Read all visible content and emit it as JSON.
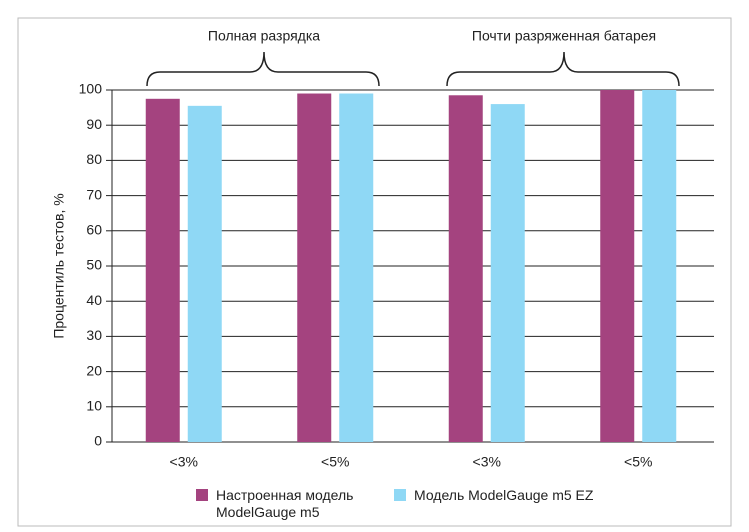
{
  "chart_data": {
    "type": "bar",
    "ylabel": "Процентиль тестов, %",
    "group_labels": [
      "Полная разрядка",
      "Почти разряженная батарея"
    ],
    "categories": [
      "<3%",
      "<5%",
      "<3%",
      "<5%"
    ],
    "series": [
      {
        "name": "Настроенная модель ModelGauge m5",
        "color": "#a4437f",
        "values": [
          97.5,
          99,
          98.5,
          100
        ]
      },
      {
        "name": "Модель ModelGauge m5 EZ",
        "color": "#8fd8f5",
        "values": [
          95.5,
          99,
          96,
          100
        ]
      }
    ],
    "ylim": [
      0,
      100
    ],
    "yticks": [
      0,
      10,
      20,
      30,
      40,
      50,
      60,
      70,
      80,
      90,
      100
    ],
    "grid": true
  }
}
